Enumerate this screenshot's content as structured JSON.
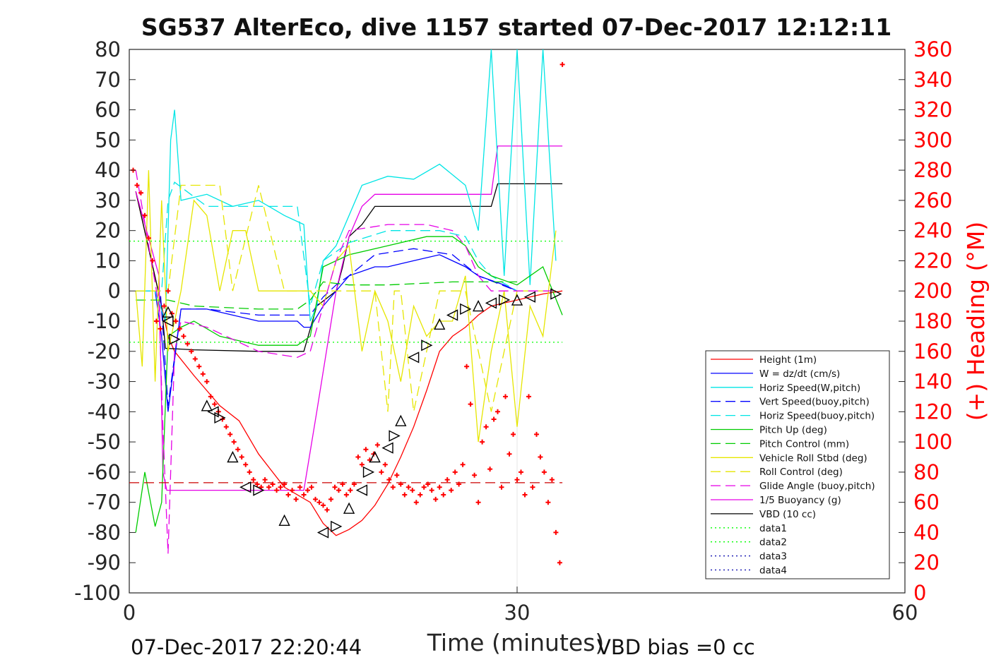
{
  "chart_data": {
    "type": "line",
    "title": "SG537 AlterEco, dive 1157 started 07-Dec-2017 12:12:11",
    "xlabel": "Time (minutes)",
    "ylabel_right": "(+) Heading (°M)",
    "footer_left": "07-Dec-2017 22:20:44",
    "footer_right": "VBD bias =0 cc",
    "xlim": [
      0,
      60
    ],
    "ylim": [
      -100,
      80
    ],
    "ylim_right": [
      0,
      360
    ],
    "x_ticks": [
      "0",
      "30",
      "60"
    ],
    "y_ticks": [
      "80",
      "70",
      "60",
      "50",
      "40",
      "30",
      "20",
      "10",
      "0",
      "-10",
      "-20",
      "-30",
      "-40",
      "-50",
      "-60",
      "-70",
      "-80",
      "-90",
      "-100"
    ],
    "y_right_ticks": [
      "360",
      "340",
      "320",
      "300",
      "280",
      "260",
      "240",
      "220",
      "200",
      "180",
      "160",
      "140",
      "120",
      "100",
      "80",
      "60",
      "40",
      "20",
      "0"
    ],
    "grid": "x=30 only",
    "legend_placement": "lower-right",
    "colors": {
      "height": "#ff0000",
      "w": "#0000ff",
      "horiz": "#00e5e5",
      "pitch": "#00cc00",
      "roll": "#ffff00",
      "glide": "#e600e6",
      "vbd": "#000000",
      "heading": "#ff0000",
      "data12": "#00ff00",
      "data34": "#0000aa",
      "dashred": "#cc0000"
    },
    "legend": [
      {
        "label": "Height (1m)",
        "color": "#ff0000",
        "dash": "solid"
      },
      {
        "label": "W = dz/dt (cm/s)",
        "color": "#0000ff",
        "dash": "solid"
      },
      {
        "label": "Horiz Speed(W,pitch)",
        "color": "#00e5e5",
        "dash": "solid"
      },
      {
        "label": "Vert Speed(buoy,pitch)",
        "color": "#0000ff",
        "dash": "dashed"
      },
      {
        "label": "Horiz Speed(buoy,pitch)",
        "color": "#00e5e5",
        "dash": "dashed"
      },
      {
        "label": "Pitch Up (deg)",
        "color": "#00cc00",
        "dash": "solid"
      },
      {
        "label": "Pitch Control (mm)",
        "color": "#00cc00",
        "dash": "dashed"
      },
      {
        "label": "Vehicle Roll Stbd (deg)",
        "color": "#e6e600",
        "dash": "solid"
      },
      {
        "label": "Roll Control (deg)",
        "color": "#e6e600",
        "dash": "dashed"
      },
      {
        "label": "Glide Angle (buoy,pitch)",
        "color": "#e600e6",
        "dash": "dashed"
      },
      {
        "label": "1/5 Buoyancy (g)",
        "color": "#e600e6",
        "dash": "solid"
      },
      {
        "label": "VBD (10 cc)",
        "color": "#000000",
        "dash": "solid"
      },
      {
        "label": "data1",
        "color": "#00ff00",
        "dash": "dotted"
      },
      {
        "label": "data2",
        "color": "#00ff00",
        "dash": "dotted"
      },
      {
        "label": "data3",
        "color": "#0000aa",
        "dash": "dotted"
      },
      {
        "label": "data4",
        "color": "#0000aa",
        "dash": "dotted"
      }
    ],
    "series": [
      {
        "name": "Height (1m)",
        "x": [
          0.5,
          2.5,
          3,
          3.5,
          5,
          7,
          8.5,
          10,
          12,
          14,
          15,
          16,
          17,
          18,
          19,
          20,
          21,
          22,
          23,
          24,
          25,
          26,
          27,
          28,
          29,
          30,
          31,
          32,
          33.5
        ],
        "y": [
          33,
          -5,
          -15,
          -20,
          -28,
          -38,
          -43,
          -54,
          -65,
          -70,
          -77,
          -81,
          -79,
          -76,
          -71,
          -64,
          -55,
          -45,
          -33,
          -20,
          -15,
          -12,
          -8,
          -5,
          -4,
          -3,
          -2,
          -1,
          0
        ]
      },
      {
        "name": "VBD (10 cc)",
        "x": [
          0.5,
          2.5,
          2.8,
          5,
          10,
          13.5,
          14.5,
          16,
          16.5,
          17,
          18,
          19,
          28,
          28.5,
          32,
          33.5
        ],
        "y": [
          33,
          -5,
          -19,
          -19.5,
          -20,
          -20,
          -5,
          0,
          8,
          18,
          22,
          28,
          28,
          35.5,
          35.5,
          35.5
        ]
      },
      {
        "name": "1/5 Buoyancy (g)",
        "x": [
          0.5,
          2.3,
          2.6,
          2.9,
          10,
          13.5,
          14.5,
          16,
          17,
          18,
          19,
          20,
          25,
          28,
          28.5,
          33.5
        ],
        "y": [
          33,
          5,
          -60,
          -66,
          -66,
          -66,
          -40,
          0,
          18,
          28,
          32,
          32,
          32,
          32,
          48,
          48
        ]
      },
      {
        "name": "W = dz/dt (cm/s)",
        "x": [
          0.5,
          2,
          2.5,
          3,
          4,
          6,
          10,
          13,
          13.5,
          14,
          15,
          16,
          17,
          19,
          20,
          22,
          24,
          26,
          27,
          29,
          30
        ],
        "y": [
          0,
          0,
          -15,
          -40,
          -6,
          -6,
          -10,
          -10,
          -12,
          -12,
          -5,
          0,
          5,
          8,
          8,
          10,
          12,
          8,
          5,
          2,
          0
        ]
      },
      {
        "name": "Vert Speed(buoy,pitch)",
        "x": [
          0.5,
          2.4,
          3,
          4,
          6,
          10,
          13,
          14,
          15,
          16,
          17,
          19,
          22,
          25,
          27,
          30
        ],
        "y": [
          0,
          0,
          -38,
          -6,
          -6,
          -8,
          -8,
          -8,
          -2,
          2,
          5,
          12,
          14,
          12,
          5,
          0
        ]
      },
      {
        "name": "Horiz Speed(W,pitch)",
        "x": [
          0.5,
          2,
          2.8,
          3.2,
          3.5,
          4,
          6,
          8,
          10,
          12,
          13.5,
          14,
          14.5,
          15,
          16,
          18,
          20,
          22,
          24,
          26,
          27,
          28,
          29,
          30,
          31,
          32,
          33
        ],
        "y": [
          0,
          0,
          -10,
          50,
          60,
          30,
          32,
          28,
          30,
          25,
          22,
          -10,
          -5,
          10,
          15,
          35,
          38,
          37,
          42,
          35,
          20,
          80,
          5,
          80,
          2,
          80,
          10
        ]
      },
      {
        "name": "Horiz Speed(buoy,pitch)",
        "x": [
          0.5,
          2.5,
          3,
          3.5,
          6,
          10,
          13,
          14,
          15,
          17,
          20,
          24,
          26,
          27,
          28,
          30
        ],
        "y": [
          0,
          0,
          30,
          36,
          28,
          28,
          28,
          -5,
          10,
          16,
          20,
          20,
          18,
          10,
          5,
          0
        ]
      },
      {
        "name": "Pitch Up (deg)",
        "x": [
          0.5,
          1.2,
          2,
          2.5,
          3,
          4,
          5,
          7,
          10,
          13,
          14,
          15,
          17,
          20,
          23,
          25,
          26,
          27,
          28,
          30,
          32,
          33.5
        ],
        "y": [
          -80,
          -60,
          -78,
          -70,
          -15,
          -12,
          -10,
          -15,
          -18,
          -18,
          -15,
          8,
          12,
          15,
          18,
          18,
          15,
          8,
          5,
          2,
          8,
          -8
        ]
      },
      {
        "name": "Pitch Control (mm)",
        "x": [
          0.5,
          2.5,
          3,
          5,
          10,
          13,
          14,
          15,
          17,
          20,
          25,
          28,
          30
        ],
        "y": [
          -3,
          -3,
          -3,
          -5,
          -6,
          -6,
          -3,
          3,
          2,
          2,
          3,
          3,
          3
        ]
      },
      {
        "name": "Vehicle Roll Stbd (deg)",
        "x": [
          0.5,
          1,
          1.5,
          2,
          2.5,
          3,
          4,
          5,
          6,
          7,
          8,
          9,
          10,
          12,
          13,
          14,
          15,
          16,
          17,
          18,
          19,
          20,
          21,
          22,
          23,
          24,
          25,
          26,
          27,
          28,
          29,
          30,
          31,
          32,
          33
        ],
        "y": [
          0,
          -25,
          40,
          -30,
          30,
          -20,
          0,
          30,
          25,
          0,
          20,
          20,
          0,
          0,
          0,
          0,
          -5,
          10,
          15,
          -20,
          0,
          -10,
          -30,
          -5,
          -15,
          -10,
          -10,
          5,
          -50,
          -20,
          0,
          -45,
          -5,
          -15,
          20
        ]
      },
      {
        "name": "Roll Control (deg)",
        "x": [
          0.5,
          3,
          4,
          5,
          7,
          8,
          10,
          12,
          14,
          17,
          19,
          20,
          20.5,
          21,
          22,
          24,
          26,
          28,
          30,
          33
        ],
        "y": [
          0,
          0,
          35,
          35,
          35,
          0,
          35,
          0,
          0,
          0,
          0,
          -40,
          0,
          0,
          -40,
          0,
          0,
          -40,
          0,
          0
        ]
      },
      {
        "name": "Glide Angle (buoy,pitch)",
        "x": [
          0.5,
          2.3,
          2.6,
          3,
          3.5,
          4,
          6,
          10,
          13,
          14,
          15,
          16,
          17,
          20,
          23,
          25,
          26,
          27,
          28,
          30,
          33
        ],
        "y": [
          40,
          -5,
          -45,
          -87,
          -20,
          -10,
          -12,
          -20,
          -22,
          -20,
          -5,
          10,
          20,
          22,
          22,
          20,
          15,
          5,
          0,
          0,
          0
        ]
      },
      {
        "name": "data1",
        "x": [
          0,
          33.5
        ],
        "y": [
          16.5,
          16.5
        ]
      },
      {
        "name": "data2",
        "x": [
          0,
          33.5
        ],
        "y": [
          -17,
          -17
        ]
      },
      {
        "name": "data3",
        "x": [
          0,
          33.5
        ],
        "y": [
          -63.5,
          -63.5
        ]
      }
    ],
    "heading_points": {
      "x": [
        0.3,
        0.6,
        0.9,
        1.2,
        1.5,
        1.8,
        2.1,
        2.4,
        2.7,
        3,
        3.3,
        3.6,
        3.9,
        4.2,
        4.5,
        4.8,
        5.1,
        5.4,
        5.7,
        6,
        6.3,
        6.6,
        6.9,
        7.2,
        7.5,
        7.8,
        8.1,
        8.4,
        8.7,
        9,
        9.3,
        9.6,
        9.9,
        10.2,
        10.5,
        10.8,
        11.1,
        11.4,
        11.7,
        12,
        12.3,
        12.6,
        12.9,
        13.2,
        13.5,
        13.8,
        14.1,
        14.4,
        14.7,
        15,
        15.3,
        15.6,
        15.9,
        16.2,
        16.5,
        16.8,
        17.1,
        17.4,
        17.7,
        18,
        18.3,
        18.6,
        18.9,
        19.2,
        19.5,
        19.8,
        20.1,
        20.4,
        20.7,
        21,
        21.3,
        21.6,
        21.9,
        22.2,
        22.5,
        22.8,
        23.1,
        23.4,
        23.7,
        24,
        24.3,
        24.6,
        24.9,
        25.2,
        25.5,
        25.8,
        26.1,
        26.4,
        26.7,
        27,
        27.3,
        27.6,
        27.9,
        28.2,
        28.5,
        28.8,
        29.1,
        29.4,
        29.7,
        30,
        30.3,
        30.6,
        30.9,
        31.2,
        31.5,
        31.8,
        32.1,
        32.4,
        32.7,
        33,
        33.3,
        33.5
      ],
      "y": [
        280,
        270,
        265,
        250,
        235,
        220,
        180,
        175,
        190,
        200,
        185,
        180,
        175,
        170,
        165,
        160,
        155,
        150,
        145,
        140,
        130,
        125,
        120,
        115,
        110,
        105,
        100,
        95,
        90,
        85,
        80,
        75,
        72,
        70,
        75,
        70,
        72,
        68,
        70,
        72,
        65,
        68,
        62,
        70,
        65,
        68,
        70,
        62,
        60,
        58,
        55,
        62,
        70,
        68,
        72,
        65,
        68,
        72,
        90,
        85,
        95,
        88,
        92,
        98,
        80,
        85,
        75,
        70,
        78,
        72,
        65,
        70,
        68,
        60,
        65,
        70,
        72,
        68,
        62,
        70,
        65,
        75,
        68,
        80,
        72,
        85,
        150,
        125,
        78,
        60,
        100,
        110,
        82,
        115,
        120,
        70,
        130,
        92,
        105,
        75,
        80,
        65,
        130,
        70,
        105,
        90,
        80,
        60,
        75,
        40,
        20,
        350
      ]
    },
    "markers": {
      "x": [
        3,
        3,
        3.5,
        6,
        6.5,
        7,
        8,
        9,
        10,
        12,
        15,
        16,
        17,
        18,
        18.5,
        19,
        20,
        20.5,
        21,
        22,
        23,
        24,
        25,
        26,
        27,
        28,
        29,
        30,
        31,
        33
      ],
      "y": [
        -7,
        -10,
        -16,
        -38,
        -40,
        -42,
        -55,
        -65,
        -66,
        -76,
        -80,
        -78,
        -72,
        -66,
        -60,
        -55,
        -52,
        -48,
        -43,
        -22,
        -18,
        -11,
        -8,
        -6,
        -5,
        -4,
        -3,
        -3,
        -2,
        -1
      ]
    }
  }
}
